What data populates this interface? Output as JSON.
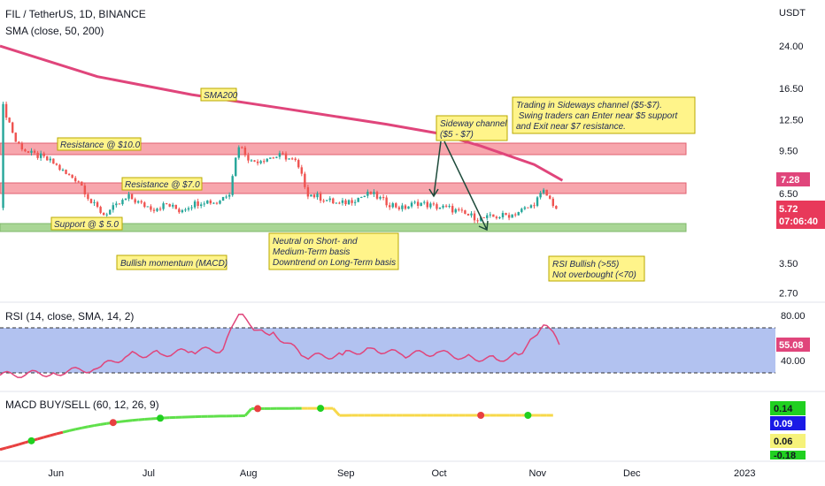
{
  "header": {
    "symbol_line": "FIL / TetherUS, 1D, BINANCE",
    "sma_line": "SMA (close, 50, 200)",
    "currency": "USDT"
  },
  "chart_data": [
    {
      "type": "candlestick",
      "title": "FIL / TetherUS, 1D, BINANCE",
      "scale": "log",
      "y_ticks": [
        "24.00",
        "16.50",
        "12.50",
        "9.50",
        "6.50",
        "3.50",
        "2.70"
      ],
      "x_ticks": [
        "Jun",
        "Jul",
        "Aug",
        "Sep",
        "Oct",
        "Nov",
        "Dec",
        "2023"
      ],
      "close_path": [
        [
          "May 16",
          14.0
        ],
        [
          "May 20",
          10.3
        ],
        [
          "May 24",
          9.3
        ],
        [
          "May 28",
          9.0
        ],
        [
          "Jun 1",
          8.5
        ],
        [
          "Jun 5",
          7.7
        ],
        [
          "Jun 9",
          7.3
        ],
        [
          "Jun 13",
          6.0
        ],
        [
          "Jun 17",
          5.4
        ],
        [
          "Jun 21",
          5.8
        ],
        [
          "Jun 25",
          6.3
        ],
        [
          "Jun 29",
          5.9
        ],
        [
          "Jul 3",
          5.7
        ],
        [
          "Jul 7",
          5.9
        ],
        [
          "Jul 11",
          5.6
        ],
        [
          "Jul 15",
          5.9
        ],
        [
          "Jul 19",
          6.1
        ],
        [
          "Jul 23",
          6.0
        ],
        [
          "Jul 27",
          6.6
        ],
        [
          "Jul 30",
          10.0
        ],
        [
          "Aug 3",
          8.6
        ],
        [
          "Aug 8",
          8.9
        ],
        [
          "Aug 13",
          9.1
        ],
        [
          "Aug 17",
          8.6
        ],
        [
          "Aug 21",
          6.5
        ],
        [
          "Aug 26",
          6.2
        ],
        [
          "Aug 31",
          5.9
        ],
        [
          "Sep 5",
          6.2
        ],
        [
          "Sep 10",
          6.5
        ],
        [
          "Sep 15",
          6.0
        ],
        [
          "Sep 20",
          5.7
        ],
        [
          "Sep 25",
          6.0
        ],
        [
          "Sep 30",
          5.8
        ],
        [
          "Oct 5",
          5.7
        ],
        [
          "Oct 10",
          5.4
        ],
        [
          "Oct 15",
          5.2
        ],
        [
          "Oct 20",
          5.3
        ],
        [
          "Oct 25",
          5.4
        ],
        [
          "Oct 31",
          5.8
        ],
        [
          "Nov 4",
          6.6
        ],
        [
          "Nov 8",
          5.72
        ]
      ],
      "series": [
        {
          "name": "SMA200",
          "color": "#e0457b",
          "points": [
            [
              "May 15",
              24.0
            ],
            [
              "Jun 15",
              18.3
            ],
            [
              "Jul 15",
              15.6
            ],
            [
              "Aug 15",
              13.7
            ],
            [
              "Sep 15",
              12.0
            ],
            [
              "Oct 1",
              11.1
            ],
            [
              "Oct 15",
              9.9
            ],
            [
              "Nov 1",
              8.4
            ],
            [
              "Nov 10",
              7.3
            ]
          ]
        }
      ],
      "levels": [
        {
          "label": "Resistance @ $10.0",
          "value": 10.0
        },
        {
          "label": "Resistance @ $7.0",
          "value": 7.0
        },
        {
          "label": "Support @ $ 5.0",
          "value": 5.0
        }
      ],
      "last_price": "5.72",
      "countdown": "07:06:40",
      "sma200_last": "7.28",
      "annotations": [
        "SMA200",
        "Sideway channel\n($5 - $7)",
        "Trading in Sideways channel ($5-$7).\n Swing traders can Enter near $5 support\nand Exit near $7 resistance.",
        "Neutral on Short- and\nMedium-Term basis\nDowntrend on Long-Term basis",
        "Bullish momentum (MACD)",
        "RSI Bullish (>55)\nNot overbought (<70)"
      ]
    },
    {
      "type": "line",
      "title": "RSI (14, close, SMA, 14, 2)",
      "y_ticks": [
        "80.00",
        "40.00"
      ],
      "bands": [
        70,
        30
      ],
      "last_value": "55.08",
      "values": [
        [
          "May 15",
          28
        ],
        [
          "Jun 1",
          30
        ],
        [
          "Jun 15",
          34
        ],
        [
          "Jun 25",
          46
        ],
        [
          "Jul 5",
          47
        ],
        [
          "Jul 15",
          49
        ],
        [
          "Jul 25",
          51
        ],
        [
          "Jul 30",
          82
        ],
        [
          "Aug 5",
          68
        ],
        [
          "Aug 10",
          66
        ],
        [
          "Aug 20",
          44
        ],
        [
          "Sep 1",
          46
        ],
        [
          "Sep 10",
          52
        ],
        [
          "Sep 20",
          46
        ],
        [
          "Oct 1",
          48
        ],
        [
          "Oct 10",
          44
        ],
        [
          "Oct 20",
          42
        ],
        [
          "Oct 27",
          46
        ],
        [
          "Nov 1",
          62
        ],
        [
          "Nov 5",
          72
        ],
        [
          "Nov 9",
          55
        ]
      ]
    },
    {
      "type": "line",
      "title": "MACD BUY/SELL (60, 12, 26, 9)",
      "values_display": [
        "0.14",
        "0.09",
        "0.06",
        "-0.18"
      ]
    }
  ],
  "colors": {
    "up": "#26a69a",
    "down": "#ef5350",
    "sma200": "#e0457b",
    "resistance_fill": "#f7a6ad",
    "support_fill": "#a9d695",
    "rsi_fill": "#b2c2f0",
    "rsi_line": "#e0457b",
    "note_fill": "#fff48a"
  }
}
